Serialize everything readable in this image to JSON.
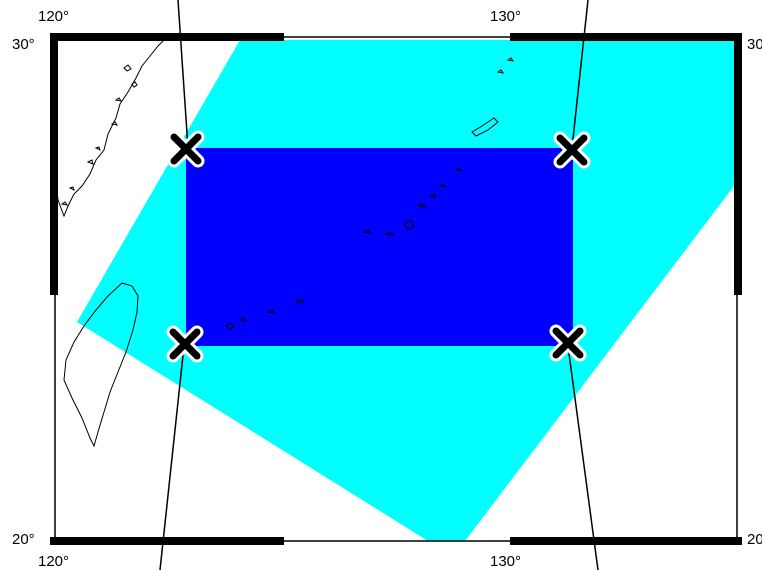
{
  "map": {
    "lon_labels": {
      "top_left": "120°",
      "top_right": "130°",
      "bottom_left": "120°",
      "bottom_right": "130°"
    },
    "lat_labels": {
      "top_left": "30°",
      "top_right": "30",
      "bottom_left": "20°",
      "bottom_right": "20"
    },
    "colors": {
      "swath": "#00ffff",
      "target_area": "#0000ff",
      "frame": "#000000",
      "land_outline": "#000000",
      "marker_fill": "#000000",
      "marker_outline": "#ffffff"
    },
    "markers": [
      {
        "name": "corner-marker-upper-left",
        "icon": "x-mark-icon"
      },
      {
        "name": "corner-marker-upper-right",
        "icon": "x-mark-icon"
      },
      {
        "name": "corner-marker-lower-left",
        "icon": "x-mark-icon"
      },
      {
        "name": "corner-marker-lower-right",
        "icon": "x-mark-icon"
      }
    ]
  }
}
